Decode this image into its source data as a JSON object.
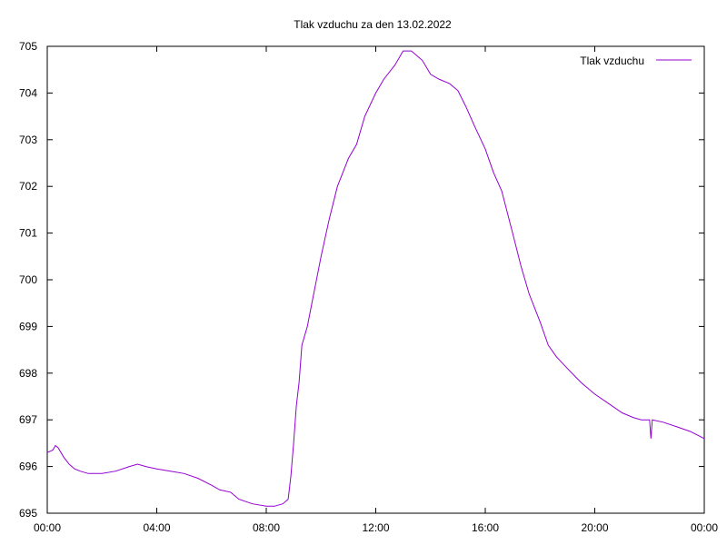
{
  "chart_data": {
    "type": "line",
    "title": "Tlak vzduchu za den 13.02.2022",
    "xlabel": "",
    "ylabel": "",
    "x_unit": "hours",
    "xlim": [
      0,
      24
    ],
    "ylim": [
      695,
      705
    ],
    "x_ticks": [
      {
        "value": 0,
        "label": "00:00"
      },
      {
        "value": 4,
        "label": "04:00"
      },
      {
        "value": 8,
        "label": "08:00"
      },
      {
        "value": 12,
        "label": "12:00"
      },
      {
        "value": 16,
        "label": "16:00"
      },
      {
        "value": 20,
        "label": "20:00"
      },
      {
        "value": 24,
        "label": "00:00"
      }
    ],
    "y_ticks": [
      695,
      696,
      697,
      698,
      699,
      700,
      701,
      702,
      703,
      704,
      705
    ],
    "grid": false,
    "legend_position": "top-right",
    "series": [
      {
        "name": "Tlak vzduchu",
        "color": "#9400d3",
        "x": [
          0,
          0.2,
          0.3,
          0.4,
          0.6,
          0.8,
          1.0,
          1.2,
          1.5,
          2.0,
          2.5,
          3.0,
          3.3,
          3.6,
          4.0,
          4.5,
          5.0,
          5.5,
          6.0,
          6.3,
          6.7,
          7.0,
          7.5,
          8.0,
          8.3,
          8.6,
          8.8,
          8.9,
          9.0,
          9.1,
          9.2,
          9.3,
          9.5,
          9.7,
          10.0,
          10.3,
          10.6,
          11.0,
          11.3,
          11.6,
          12.0,
          12.3,
          12.7,
          13.0,
          13.3,
          13.7,
          14.0,
          14.3,
          14.7,
          15.0,
          15.3,
          15.6,
          16.0,
          16.3,
          16.6,
          17.0,
          17.3,
          17.6,
          18.0,
          18.3,
          18.6,
          19.0,
          19.5,
          20.0,
          20.5,
          21.0,
          21.4,
          21.7,
          22.0,
          22.05,
          22.1,
          22.5,
          23.0,
          23.5,
          24.0
        ],
        "values": [
          696.3,
          696.35,
          696.45,
          696.4,
          696.2,
          696.05,
          695.95,
          695.9,
          695.85,
          695.85,
          695.9,
          696.0,
          696.05,
          696.0,
          695.95,
          695.9,
          695.85,
          695.75,
          695.6,
          695.5,
          695.45,
          695.3,
          695.2,
          695.15,
          695.15,
          695.2,
          695.3,
          695.8,
          696.5,
          697.3,
          697.8,
          698.6,
          699.0,
          699.6,
          700.5,
          701.3,
          702.0,
          702.6,
          702.9,
          703.5,
          704.0,
          704.3,
          704.6,
          704.9,
          704.9,
          704.7,
          704.4,
          704.3,
          704.2,
          704.05,
          703.7,
          703.3,
          702.8,
          702.3,
          701.9,
          701.0,
          700.3,
          699.7,
          699.1,
          698.6,
          698.35,
          698.1,
          697.8,
          697.55,
          697.35,
          697.15,
          697.05,
          697.0,
          697.0,
          696.6,
          697.0,
          696.95,
          696.85,
          696.75,
          696.6
        ]
      }
    ]
  }
}
